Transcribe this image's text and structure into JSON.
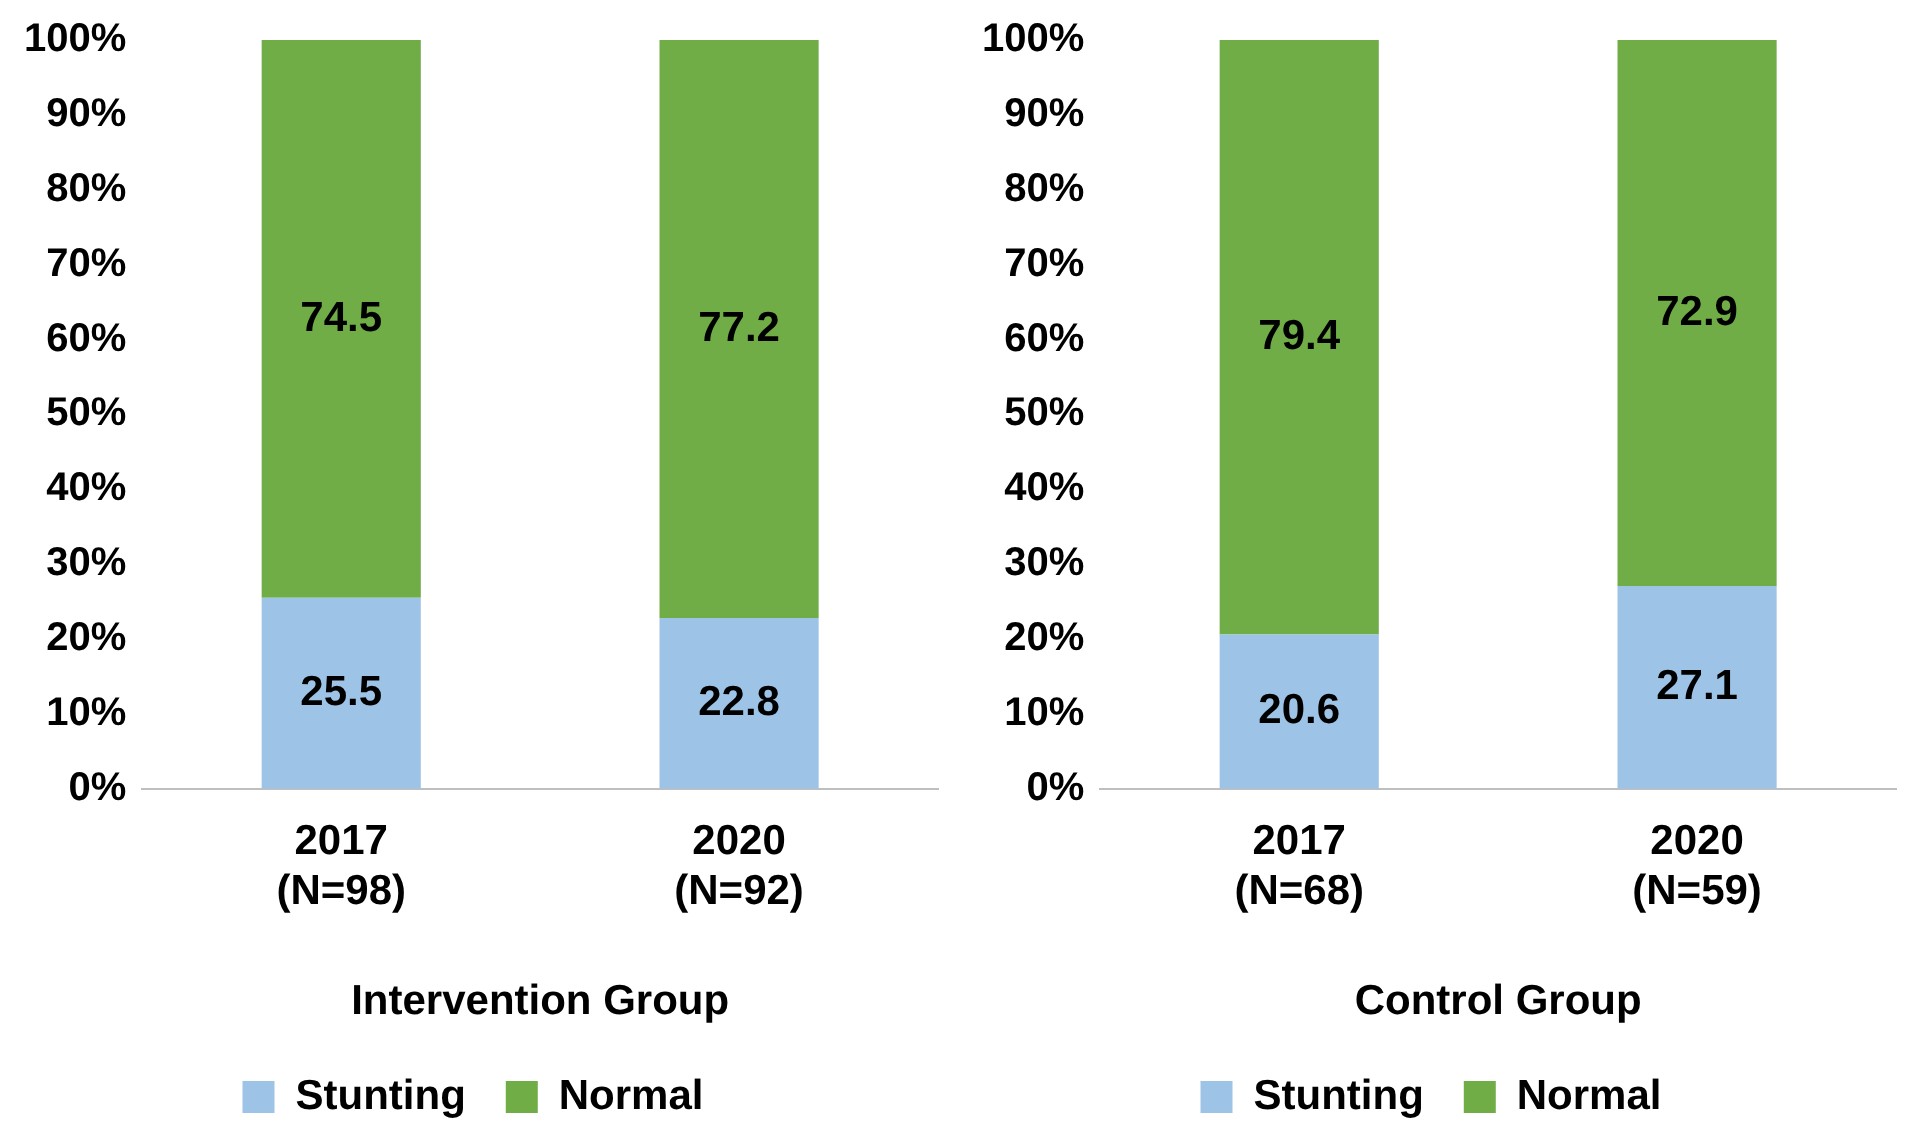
{
  "chart_data": [
    {
      "type": "bar",
      "stacked": true,
      "categories": [
        "2017\n(N=98)",
        "2020\n(N=92)"
      ],
      "xlabel": "Intervention Group",
      "series": [
        {
          "name": "Stunting",
          "color": "#9dc3e6",
          "values": [
            25.5,
            22.8
          ]
        },
        {
          "name": "Normal",
          "color": "#70ad47",
          "values": [
            74.5,
            77.2
          ]
        }
      ],
      "ylim": [
        0,
        100
      ],
      "yticks": [
        {
          "value": 0,
          "label": "0%"
        },
        {
          "value": 10,
          "label": "10%"
        },
        {
          "value": 20,
          "label": "20%"
        },
        {
          "value": 30,
          "label": "30%"
        },
        {
          "value": 40,
          "label": "40%"
        },
        {
          "value": 50,
          "label": "50%"
        },
        {
          "value": 60,
          "label": "60%"
        },
        {
          "value": 70,
          "label": "70%"
        },
        {
          "value": 80,
          "label": "80%"
        },
        {
          "value": 90,
          "label": "90%"
        },
        {
          "value": 100,
          "label": "100%"
        }
      ],
      "grid": false,
      "legend": "bottom",
      "data_labels": true
    },
    {
      "type": "bar",
      "stacked": true,
      "categories": [
        "2017\n(N=68)",
        "2020\n(N=59)"
      ],
      "xlabel": "Control Group",
      "series": [
        {
          "name": "Stunting",
          "color": "#9dc3e6",
          "values": [
            20.6,
            27.1
          ]
        },
        {
          "name": "Normal",
          "color": "#70ad47",
          "values": [
            79.4,
            72.9
          ]
        }
      ],
      "ylim": [
        0,
        100
      ],
      "yticks": [
        {
          "value": 0,
          "label": "0%"
        },
        {
          "value": 10,
          "label": "10%"
        },
        {
          "value": 20,
          "label": "20%"
        },
        {
          "value": 30,
          "label": "30%"
        },
        {
          "value": 40,
          "label": "40%"
        },
        {
          "value": 50,
          "label": "50%"
        },
        {
          "value": 60,
          "label": "60%"
        },
        {
          "value": 70,
          "label": "70%"
        },
        {
          "value": 80,
          "label": "80%"
        },
        {
          "value": 90,
          "label": "90%"
        },
        {
          "value": 100,
          "label": "100%"
        }
      ],
      "grid": false,
      "legend": "bottom",
      "data_labels": true
    }
  ]
}
